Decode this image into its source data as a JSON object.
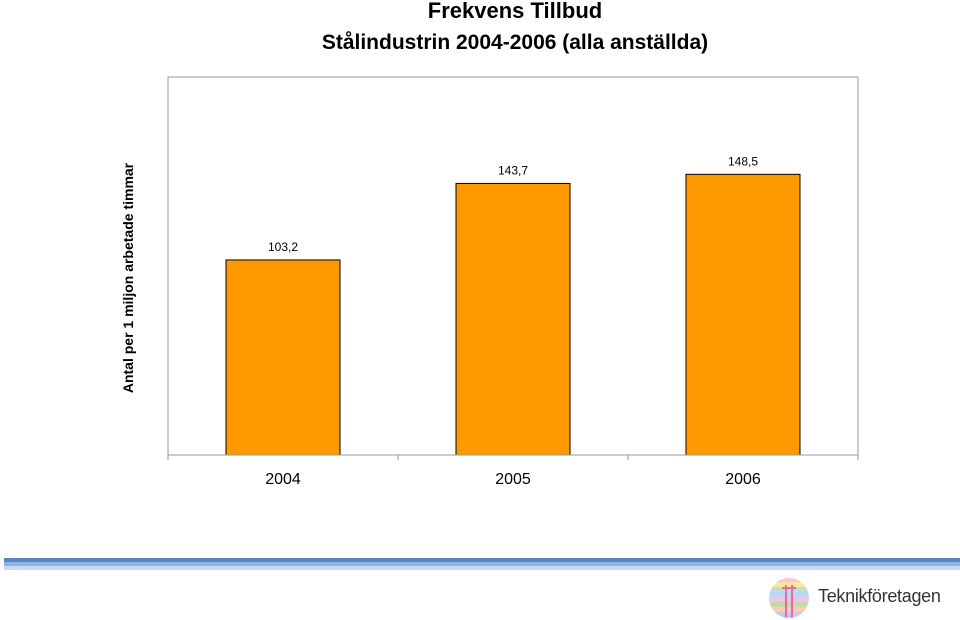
{
  "chart_data": {
    "type": "bar",
    "title": "Frekvens Tillbud",
    "subtitle": "Stålindustrin 2004-2006 (alla anställda)",
    "xlabel": "",
    "ylabel": "Antal per 1 miljon arbetade timmar",
    "categories": [
      "2004",
      "2005",
      "2006"
    ],
    "values": [
      103.2,
      143.7,
      148.5
    ],
    "value_labels": [
      "103,2",
      "143,7",
      "148,5"
    ],
    "ylim": [
      0,
      200
    ],
    "grid": false,
    "legend": "none",
    "bar_color": "#ff9900"
  },
  "footer": {
    "logo_text": "Teknikföretagen"
  }
}
